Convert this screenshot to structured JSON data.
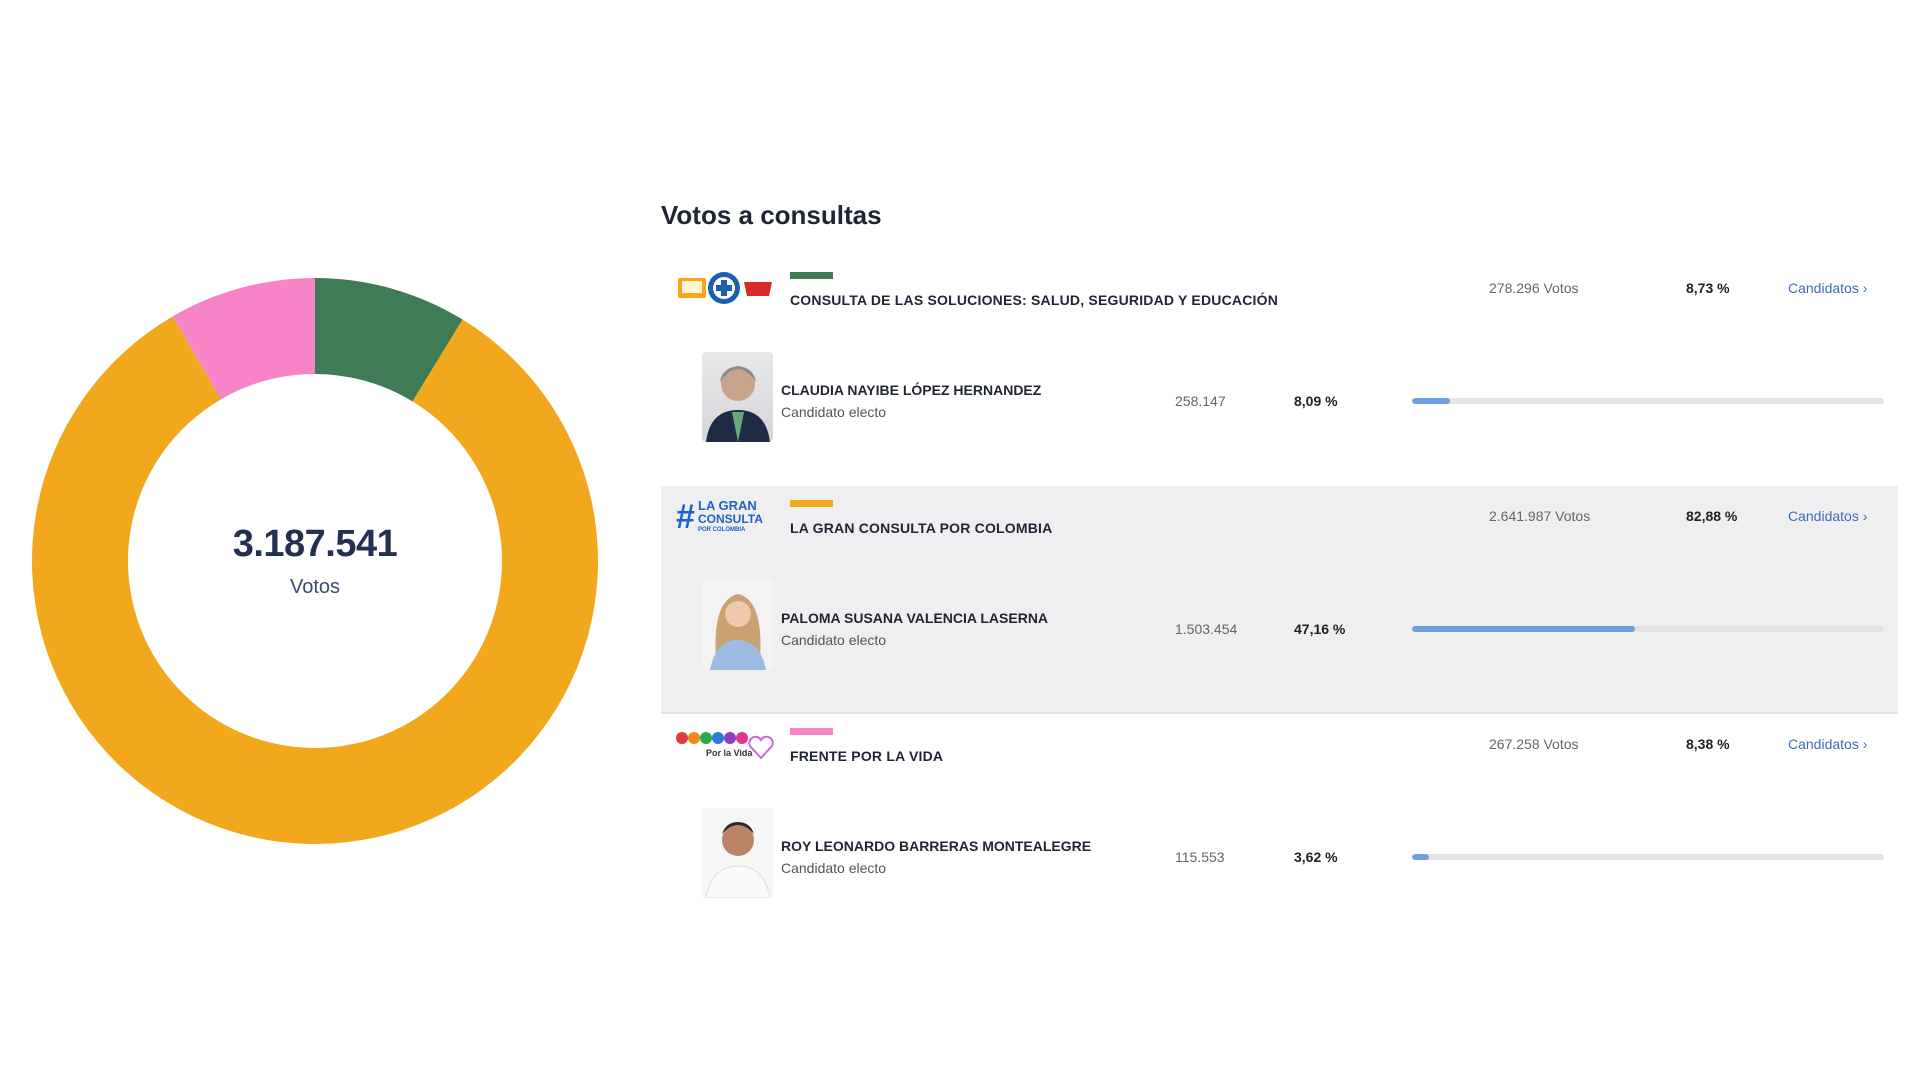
{
  "title": "Votos a consultas",
  "total": {
    "value": "3.187.541",
    "label": "Votos"
  },
  "chart_data": {
    "type": "pie",
    "variant": "donut",
    "title": "",
    "slices": [
      {
        "label": "CONSULTA DE LAS SOLUCIONES: SALUD, SEGURIDAD Y EDUCACIÓN",
        "value": 8.73,
        "color": "#3f7b55"
      },
      {
        "label": "LA GRAN CONSULTA POR COLOMBIA",
        "value": 82.88,
        "color": "#f2a81d"
      },
      {
        "label": "FRENTE POR LA VIDA",
        "value": 8.38,
        "color": "#f784c7"
      }
    ]
  },
  "groups": [
    {
      "name": "CONSULTA DE LAS SOLUCIONES: SALUD, SEGURIDAD Y EDUCACIÓN",
      "logo": "Soluciones",
      "color": "#3f7b55",
      "votes": "278.296 Votos",
      "pct": "8,73 %",
      "link": "Candidatos ›",
      "candidate": {
        "name": "CLAUDIA NAYIBE LÓPEZ HERNANDEZ",
        "status": "Candidato electo",
        "votes": "258.147",
        "pct": "8,09 %",
        "progress": 8.09
      }
    },
    {
      "name": "LA GRAN CONSULTA POR COLOMBIA",
      "logo": "#LA GRAN CONSULTA",
      "color": "#f2a81d",
      "votes": "2.641.987 Votos",
      "pct": "82,88 %",
      "link": "Candidatos ›",
      "candidate": {
        "name": "PALOMA SUSANA VALENCIA LASERNA",
        "status": "Candidato electo",
        "votes": "1.503.454",
        "pct": "47,16 %",
        "progress": 47.16
      }
    },
    {
      "name": "FRENTE POR LA VIDA",
      "logo": "FRENTE",
      "color": "#f784c7",
      "votes": "267.258 Votos",
      "pct": "8,38 %",
      "link": "Candidatos ›",
      "candidate": {
        "name": "ROY LEONARDO BARRERAS MONTEALEGRE",
        "status": "Candidato electo",
        "votes": "115.553",
        "pct": "3,62 %",
        "progress": 3.62
      }
    }
  ]
}
